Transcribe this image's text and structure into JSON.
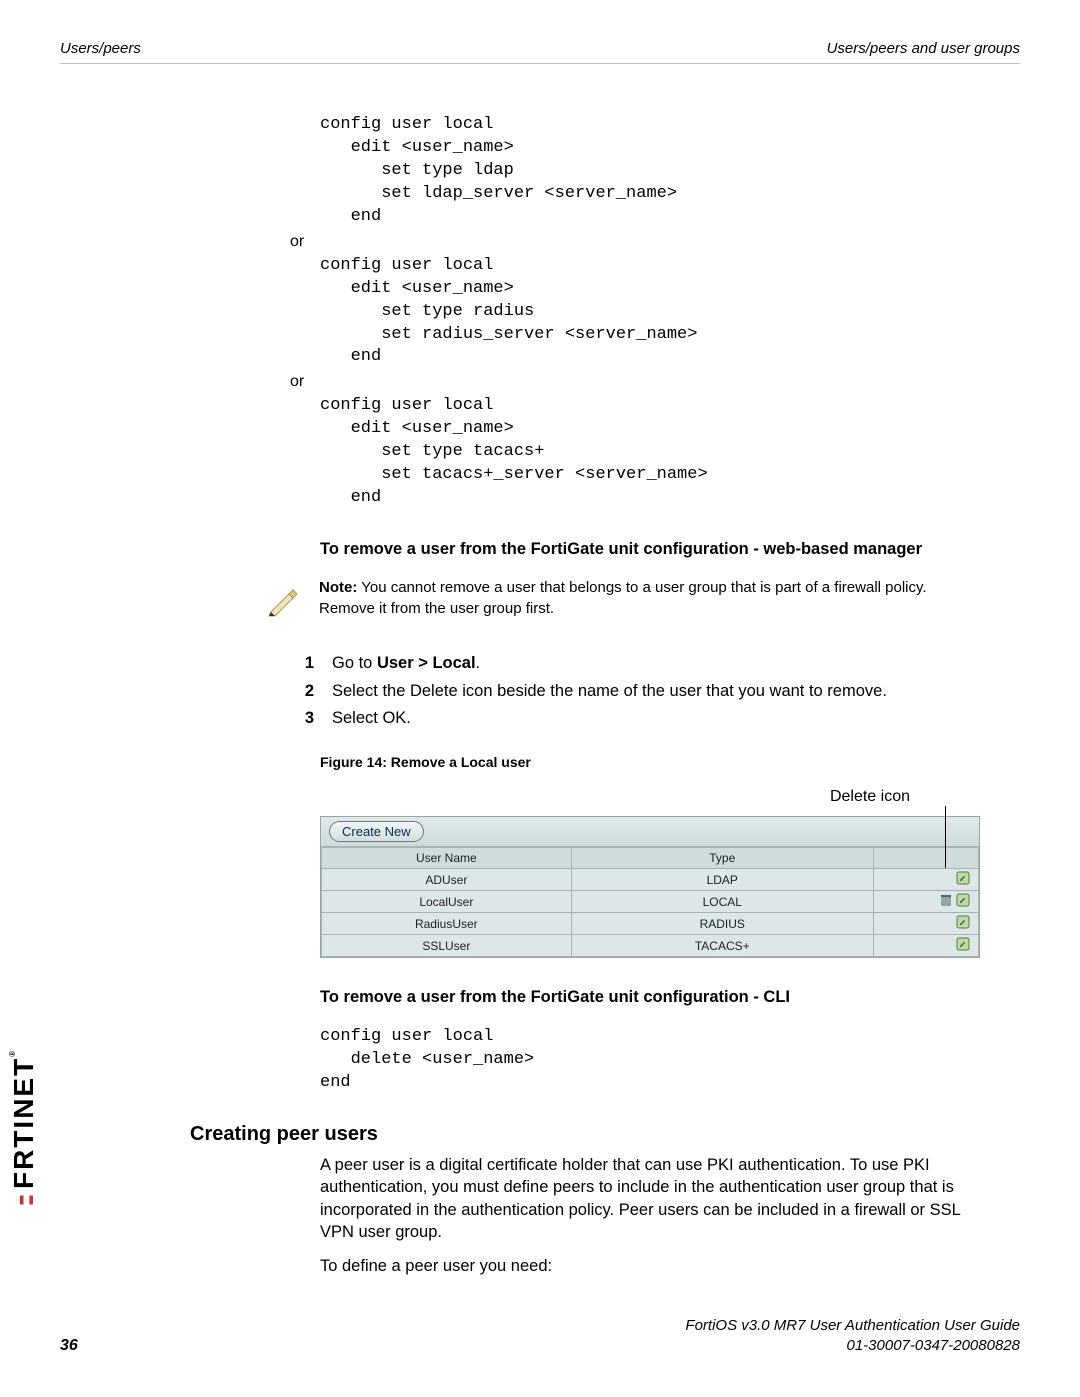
{
  "header": {
    "left": "Users/peers",
    "right": "Users/peers and user groups"
  },
  "code1": "config user local\n   edit <user_name>\n      set type ldap\n      set ldap_server <server_name>\n   end",
  "or": "or",
  "code2": "config user local\n   edit <user_name>\n      set type radius\n      set radius_server <server_name>\n   end",
  "code3": "config user local\n   edit <user_name>\n      set type tacacs+\n      set tacacs+_server <server_name>\n   end",
  "remove_web_heading": "To remove a user from the FortiGate unit configuration - web-based manager",
  "note": {
    "bold": "Note:",
    "text": " You cannot remove a user that belongs to a user group that is part of a firewall policy. Remove it from the user group first."
  },
  "steps": [
    {
      "n": "1",
      "pre": "Go to ",
      "bold": "User > Local",
      "post": "."
    },
    {
      "n": "2",
      "text": "Select the Delete icon beside the name of the user that you want to remove."
    },
    {
      "n": "3",
      "text": "Select OK."
    }
  ],
  "figure_caption": "Figure 14: Remove a Local user",
  "delete_label": "Delete icon",
  "ui": {
    "create_label": "Create New",
    "cols": {
      "c1": "User Name",
      "c2": "Type",
      "c3": ""
    },
    "rows": [
      {
        "name": "ADUser",
        "type": "LDAP",
        "del": false
      },
      {
        "name": "LocalUser",
        "type": "LOCAL",
        "del": true
      },
      {
        "name": "RadiusUser",
        "type": "RADIUS",
        "del": false
      },
      {
        "name": "SSLUser",
        "type": "TACACS+",
        "del": false
      }
    ],
    "colors": {
      "border": "#a8b3b3",
      "header_bg": "#cfdcdc",
      "row_bg": "#dde7e7",
      "bar_bg_top": "#dfe9e9",
      "btn_text": "#0a2a5a"
    }
  },
  "remove_cli_heading": "To remove a user from the FortiGate unit configuration - CLI",
  "code4": "config user local\n   delete <user_name>\nend",
  "section_heading": "Creating peer users",
  "para1": "A peer user is a digital certificate holder that can use PKI authentication. To use PKI authentication, you must define peers to include in the authentication user group that is incorporated in the authentication policy. Peer users can be included in a firewall or SSL VPN user group.",
  "para2": "To define a peer user you need:",
  "footer": {
    "page": "36",
    "line1": "FortiOS v3.0 MR7 User Authentication User Guide",
    "line2": "01-30007-0347-20080828"
  },
  "brand": "RTINET"
}
